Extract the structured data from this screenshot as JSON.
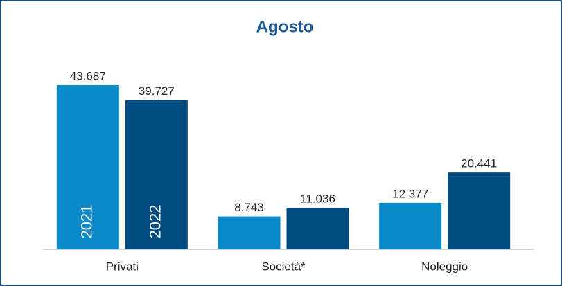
{
  "chart_data": {
    "type": "bar",
    "title": "Agosto",
    "categories": [
      "Privati",
      "Società*",
      "Noleggio"
    ],
    "series": [
      {
        "name": "2021",
        "color": "#0a8ac8",
        "values": [
          43687,
          8743,
          12377
        ],
        "value_labels": [
          "43.687",
          "8.743",
          "12.377"
        ]
      },
      {
        "name": "2022",
        "color": "#004b7f",
        "values": [
          39727,
          11036,
          20441
        ],
        "value_labels": [
          "39.727",
          "11.036",
          "20.441"
        ]
      }
    ]
  }
}
